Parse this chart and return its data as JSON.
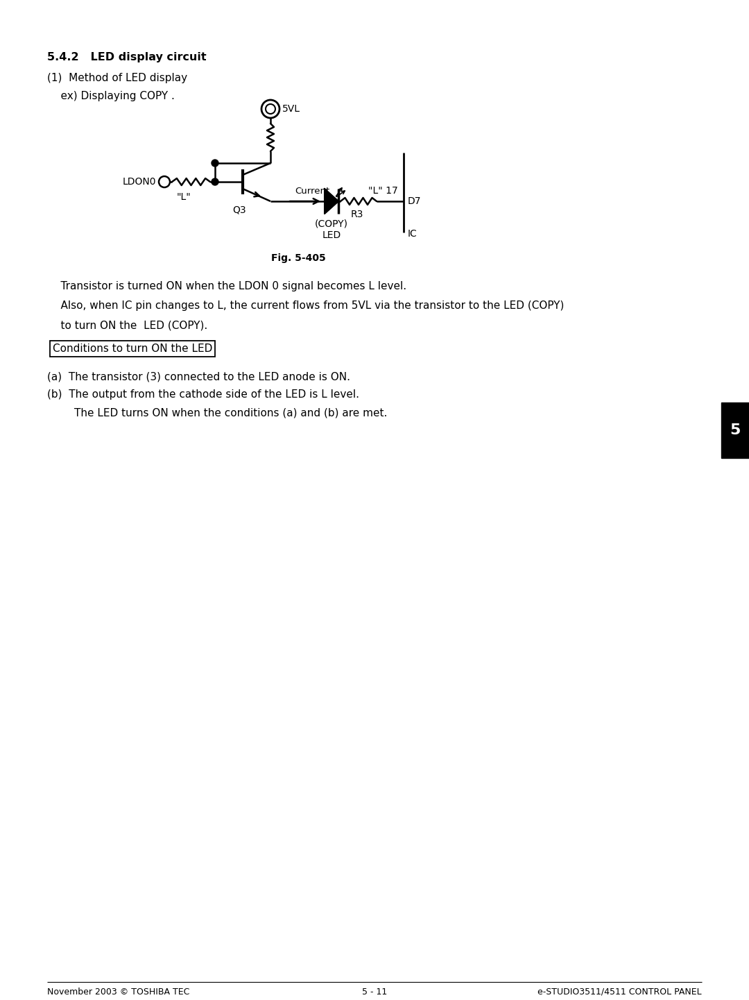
{
  "title_bold": "5.4.2   LED display circuit",
  "subtitle1": "(1)  Method of LED display",
  "subtitle2": "    ex) Displaying COPY .",
  "fig_label": "Fig. 5-405",
  "para1": "    Transistor is turned ON when the LDON 0 signal becomes L level.",
  "para2": "    Also, when IC pin changes to L, the current flows from 5VL via the transistor to the LED (COPY)",
  "para3": "    to turn ON the  LED (COPY).",
  "box_label": "Conditions to turn ON the LED",
  "item_a": "(a)  The transistor (3) connected to the LED anode is ON.",
  "item_b": "(b)  The output from the cathode side of the LED is L level.",
  "item_c": "        The LED turns ON when the conditions (a) and (b) are met.",
  "footer_left": "November 2003 © TOSHIBA TEC",
  "footer_center": "5 - 11",
  "footer_right": "e-STUDIO3511/4511 CONTROL PANEL",
  "tab_label": "5",
  "bg_color": "#ffffff",
  "text_color": "#000000"
}
